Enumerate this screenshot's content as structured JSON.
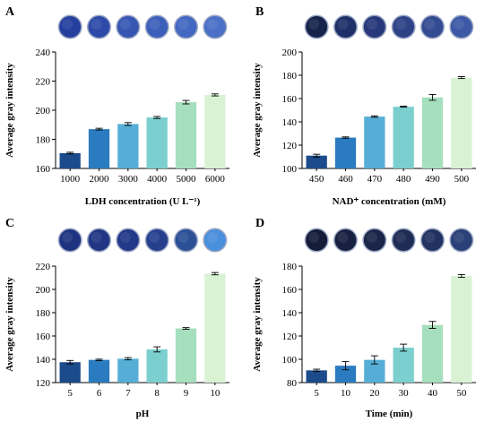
{
  "bar_colors": [
    "#1b4b8a",
    "#2a7bc0",
    "#56aed6",
    "#7ccfcf",
    "#a6dfbd",
    "#d9f2d4"
  ],
  "chart_data": [
    {
      "type": "bar",
      "panel": "A",
      "categories": [
        "1000",
        "2000",
        "3000",
        "4000",
        "5000",
        "6000"
      ],
      "values": [
        170.5,
        187,
        190.5,
        195,
        205.5,
        210.5
      ],
      "errors": [
        0.6,
        0.6,
        1.0,
        0.7,
        1.2,
        0.7
      ],
      "ylim": [
        160,
        240
      ],
      "yticks": [
        160,
        180,
        200,
        220,
        240
      ],
      "xlabel": "LDH concentration (U L⁻¹)",
      "ylabel": "Average gray intensity",
      "grid": false,
      "wells": [
        "#243f9e",
        "#2d4aa8",
        "#3656b2",
        "#3c5fba",
        "#4368c2",
        "#4a70c8"
      ]
    },
    {
      "type": "bar",
      "panel": "B",
      "categories": [
        "450",
        "460",
        "470",
        "480",
        "490",
        "500"
      ],
      "values": [
        111,
        126.5,
        144.5,
        153,
        161,
        178
      ],
      "errors": [
        1.2,
        0.6,
        0.6,
        0.4,
        2.5,
        0.8
      ],
      "ylim": [
        100,
        200
      ],
      "yticks": [
        100,
        120,
        140,
        160,
        180,
        200
      ],
      "xlabel": "NAD⁺ concentration (mM)",
      "ylabel": "Average gray intensity",
      "grid": false,
      "wells": [
        "#16224a",
        "#1f3068",
        "#27397a",
        "#2d4386",
        "#334b92",
        "#3d59a6"
      ]
    },
    {
      "type": "bar",
      "panel": "C",
      "categories": [
        "5",
        "6",
        "7",
        "8",
        "9",
        "10"
      ],
      "values": [
        137.5,
        139.5,
        140.5,
        148.5,
        166.5,
        213.5
      ],
      "errors": [
        1.5,
        0.6,
        1.0,
        2.2,
        0.7,
        1.0
      ],
      "ylim": [
        120,
        220
      ],
      "yticks": [
        120,
        140,
        160,
        180,
        200,
        220
      ],
      "xlabel": "pH",
      "ylabel": "Average gray intensity",
      "grid": false,
      "wells": [
        "#1e3380",
        "#203684",
        "#223888",
        "#26408e",
        "#2c5096",
        "#4a8fdc"
      ]
    },
    {
      "type": "bar",
      "panel": "D",
      "categories": [
        "5",
        "10",
        "20",
        "30",
        "40",
        "50"
      ],
      "values": [
        90.5,
        94.5,
        99.5,
        110,
        129.5,
        171.5
      ],
      "errors": [
        1.0,
        3.5,
        3.5,
        3.0,
        3.0,
        1.2
      ],
      "ylim": [
        80,
        180
      ],
      "yticks": [
        80,
        100,
        120,
        140,
        160,
        180
      ],
      "xlabel": "Time (min)",
      "ylabel": "Average gray intensity",
      "grid": false,
      "wells": [
        "#141c38",
        "#172040",
        "#1a2548",
        "#1e2b54",
        "#223260",
        "#2b3f78"
      ]
    }
  ]
}
